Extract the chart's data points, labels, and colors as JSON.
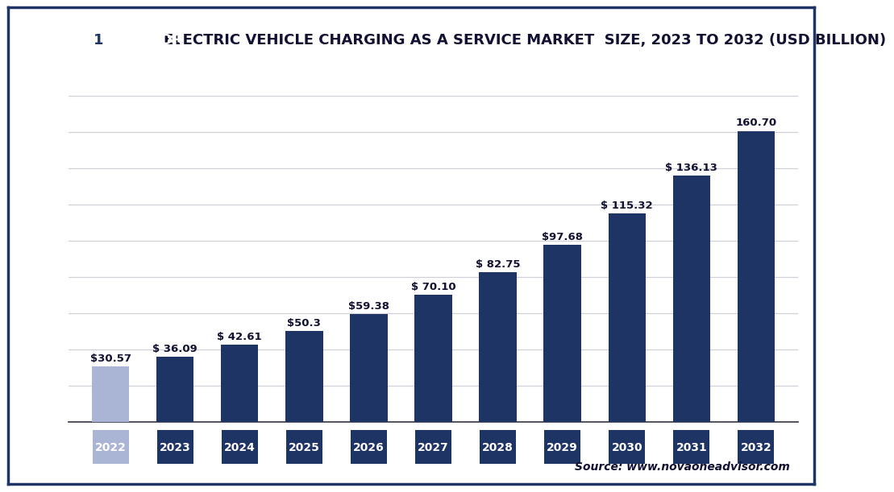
{
  "years": [
    "2022",
    "2023",
    "2024",
    "2025",
    "2026",
    "2027",
    "2028",
    "2029",
    "2030",
    "2031",
    "2032"
  ],
  "values": [
    30.57,
    36.09,
    42.61,
    50.3,
    59.38,
    70.1,
    82.75,
    97.68,
    115.32,
    136.13,
    160.7
  ],
  "labels": [
    "$30.57",
    "$ 36.09",
    "$ 42.61",
    "$50.3",
    "$59.38",
    "$ 70.10",
    "$ 82.75",
    "$97.68",
    "$ 115.32",
    "$ 136.13",
    "160.70"
  ],
  "bar_colors": [
    "#aab4d4",
    "#1e3464",
    "#1e3464",
    "#1e3464",
    "#1e3464",
    "#1e3464",
    "#1e3464",
    "#1e3464",
    "#1e3464",
    "#1e3464",
    "#1e3464"
  ],
  "tick_label_colors": [
    "#aab4d4",
    "#1e3464",
    "#1e3464",
    "#1e3464",
    "#1e3464",
    "#1e3464",
    "#1e3464",
    "#1e3464",
    "#1e3464",
    "#1e3464",
    "#1e3464"
  ],
  "title": "ELECTRIC VEHICLE CHARGING AS A SERVICE MARKET  SIZE, 2023 TO 2032 (USD BILLION)",
  "source_text": "Source: www.novaoneadvisor.com",
  "ylim": [
    0,
    185
  ],
  "grid_color": "#d0d0d8",
  "bg_color": "#ffffff",
  "dark_navy": "#1e3464",
  "label_fontsize": 9.5,
  "tick_fontsize": 10,
  "source_fontsize": 10,
  "title_fontsize": 13.0,
  "logo_text_color": "#ffffff",
  "logo_bg": "#1e3464",
  "logo_one_bg": "#ffffff",
  "logo_one_color": "#1e3464",
  "separator_color": "#1e3464",
  "outer_border_color": "#1e3464"
}
